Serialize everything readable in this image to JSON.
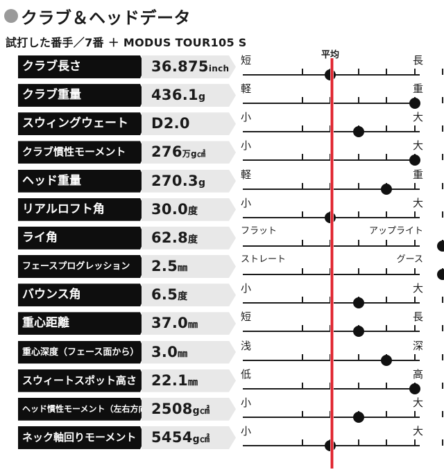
{
  "header": {
    "title": "クラブ＆ヘッドデータ",
    "subtitle": "試打した番手／7番 ＋ MODUS TOUR105 S"
  },
  "avg_label": "平均",
  "colors": {
    "accent_line": "#e0252f",
    "label_bg": "#0e0e0e",
    "value_bg": "#e8e8e8"
  },
  "rows": [
    {
      "label": "クラブ長さ",
      "value": "36.875",
      "unit": "inch",
      "left": "短",
      "right": "長",
      "level": 2
    },
    {
      "label": "クラブ重量",
      "value": "436.1",
      "unit": "g",
      "left": "軽",
      "right": "重",
      "level": 5
    },
    {
      "label": "スウィングウェート",
      "value": "D2.0",
      "unit": "",
      "left": "小",
      "right": "大",
      "level": 3
    },
    {
      "label": "クラブ慣性モーメント",
      "value": "276",
      "unit": "万g㎠",
      "left": "小",
      "right": "大",
      "level": 5
    },
    {
      "label": "ヘッド重量",
      "value": "270.3",
      "unit": "g",
      "left": "軽",
      "right": "重",
      "level": 4
    },
    {
      "label": "リアルロフト角",
      "value": "30.0",
      "unit": "度",
      "left": "小",
      "right": "大",
      "level": 2
    },
    {
      "label": "ライ角",
      "value": "62.8",
      "unit": "度",
      "left": "フラット",
      "right": "アップライト",
      "level": 6
    },
    {
      "label": "フェースプログレッション",
      "value": "2.5",
      "unit": "㎜",
      "left": "ストレート",
      "right": "グース",
      "level": 6
    },
    {
      "label": "バウンス角",
      "value": "6.5",
      "unit": "度",
      "left": "小",
      "right": "大",
      "level": 3
    },
    {
      "label": "重心距離",
      "value": "37.0",
      "unit": "㎜",
      "left": "短",
      "right": "長",
      "level": 3
    },
    {
      "label": "重心深度（フェース面から）",
      "value": "3.0",
      "unit": "㎜",
      "left": "浅",
      "right": "深",
      "level": 4
    },
    {
      "label": "スウィートスポット高さ",
      "value": "22.1",
      "unit": "㎜",
      "left": "低",
      "right": "高",
      "level": 5
    },
    {
      "label": "ヘッド慣性モーメント（左右方向）",
      "value": "2508",
      "unit": "g㎠",
      "left": "小",
      "right": "大",
      "level": 3
    },
    {
      "label": "ネック軸回りモーメント",
      "value": "5454",
      "unit": "g㎠",
      "left": "小",
      "right": "大",
      "level": 2
    }
  ]
}
